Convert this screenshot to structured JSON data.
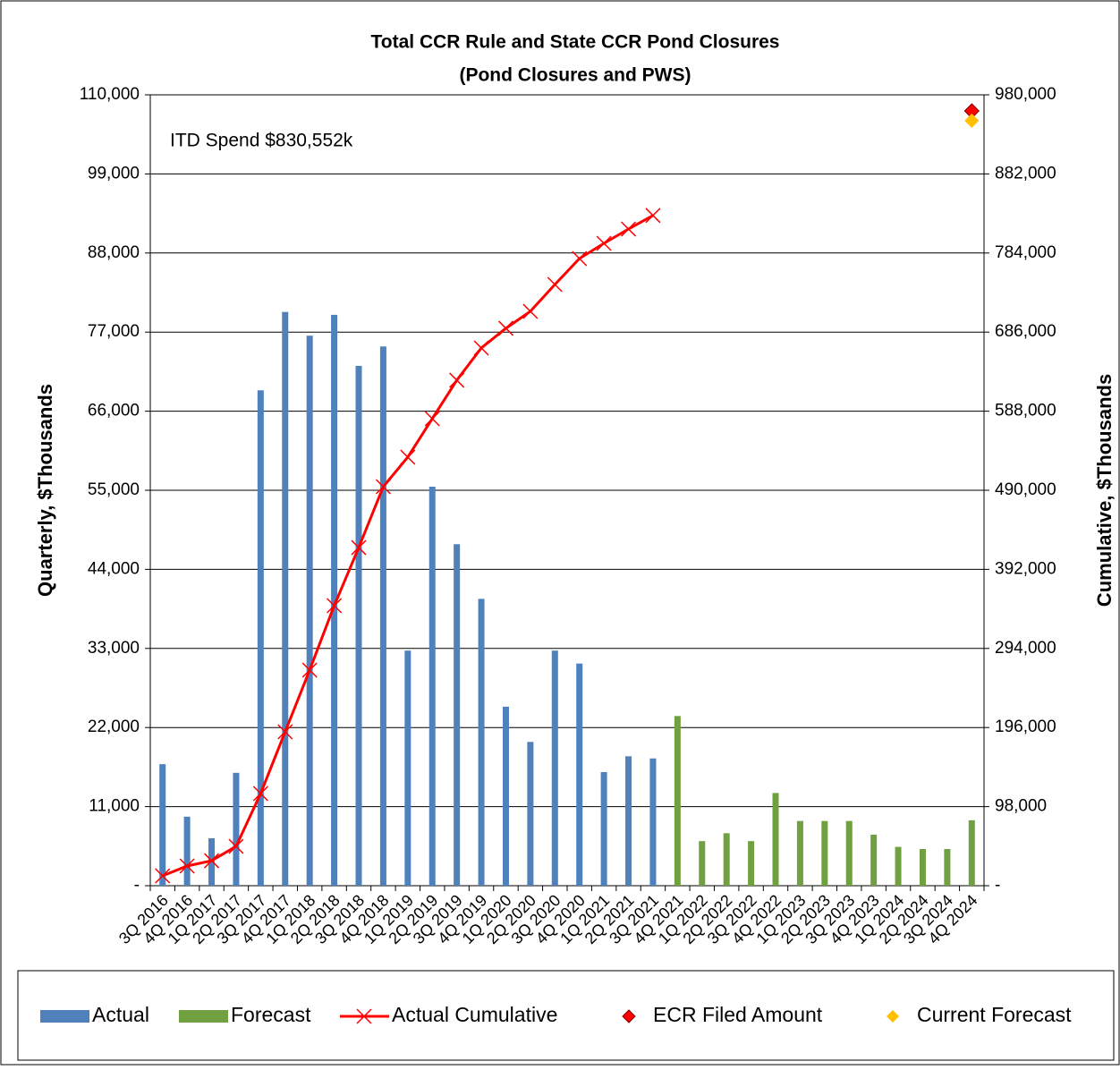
{
  "chart_data": {
    "type": "bar",
    "title": "Total CCR Rule and State CCR Pond Closures",
    "subtitle": "(Pond Closures and PWS)",
    "annotation": "ITD Spend  $830,552k",
    "y_label": "Quarterly, $Thousands",
    "y2_label": "Cumulative, $Thousands",
    "categories": [
      "3Q 2016",
      "4Q 2016",
      "1Q 2017",
      "2Q 2017",
      "3Q 2017",
      "4Q 2017",
      "1Q 2018",
      "2Q 2018",
      "3Q 2018",
      "4Q 2018",
      "1Q 2019",
      "2Q 2019",
      "3Q 2019",
      "4Q 2019",
      "1Q 2020",
      "2Q 2020",
      "3Q 2020",
      "4Q 2020",
      "1Q 2021",
      "2Q 2021",
      "3Q 2021",
      "4Q 2021",
      "1Q 2022",
      "2Q 2022",
      "3Q 2022",
      "4Q 2022",
      "1Q 2023",
      "2Q 2023",
      "3Q 2023",
      "4Q 2023",
      "1Q 2024",
      "2Q 2024",
      "3Q 2024",
      "4Q 2024"
    ],
    "series": [
      {
        "name": "Actual",
        "type": "bar",
        "color": "#4f81bd",
        "values": [
          16900,
          9600,
          6600,
          15700,
          68900,
          79800,
          76500,
          79400,
          72300,
          75000,
          32700,
          55500,
          47500,
          39900,
          24900,
          20000,
          32700,
          30900,
          15800,
          18000,
          17700,
          null,
          null,
          null,
          null,
          null,
          null,
          null,
          null,
          null,
          null,
          null,
          null,
          null
        ]
      },
      {
        "name": "Forecast",
        "type": "bar",
        "color": "#70a040",
        "values": [
          null,
          null,
          null,
          null,
          null,
          null,
          null,
          null,
          null,
          null,
          null,
          null,
          null,
          null,
          null,
          null,
          null,
          null,
          null,
          null,
          null,
          23600,
          6200,
          7300,
          6200,
          12900,
          9000,
          9000,
          9000,
          7100,
          5400,
          5100,
          5100,
          9100
        ]
      },
      {
        "name": "Actual Cumulative",
        "type": "line",
        "axis": "y2",
        "color": "#ff0000",
        "values": [
          12200,
          24400,
          31000,
          48800,
          114200,
          190700,
          267200,
          347000,
          419000,
          494400,
          531000,
          578700,
          626400,
          666300,
          690700,
          711700,
          745000,
          777100,
          796000,
          813700,
          830552,
          null,
          null,
          null,
          null,
          null,
          null,
          null,
          null,
          null,
          null,
          null,
          null,
          null
        ]
      },
      {
        "name": "ECR Filed Amount",
        "type": "scatter",
        "axis": "y2",
        "color": "#ff0000",
        "values": [
          null,
          null,
          null,
          null,
          null,
          null,
          null,
          null,
          null,
          null,
          null,
          null,
          null,
          null,
          null,
          null,
          null,
          null,
          null,
          null,
          null,
          null,
          null,
          null,
          null,
          null,
          null,
          null,
          null,
          null,
          null,
          null,
          null,
          960000
        ]
      },
      {
        "name": "Current Forecast",
        "type": "scatter",
        "axis": "y2",
        "color": "#ffc000",
        "values": [
          null,
          null,
          null,
          null,
          null,
          null,
          null,
          null,
          null,
          null,
          null,
          null,
          null,
          null,
          null,
          null,
          null,
          null,
          null,
          null,
          null,
          null,
          null,
          null,
          null,
          null,
          null,
          null,
          null,
          null,
          null,
          null,
          null,
          948000
        ]
      }
    ],
    "ylim": [
      0,
      110000
    ],
    "yticks": [
      {
        "value": 0,
        "label": "-"
      },
      {
        "value": 11000,
        "label": "11,000"
      },
      {
        "value": 22000,
        "label": "22,000"
      },
      {
        "value": 33000,
        "label": "33,000"
      },
      {
        "value": 44000,
        "label": "44,000"
      },
      {
        "value": 55000,
        "label": "55,000"
      },
      {
        "value": 66000,
        "label": "66,000"
      },
      {
        "value": 77000,
        "label": "77,000"
      },
      {
        "value": 88000,
        "label": "88,000"
      },
      {
        "value": 99000,
        "label": "99,000"
      },
      {
        "value": 110000,
        "label": "110,000"
      }
    ],
    "y2lim": [
      0,
      980000
    ],
    "y2ticks": [
      {
        "value": 0,
        "label": "-"
      },
      {
        "value": 98000,
        "label": "98,000"
      },
      {
        "value": 196000,
        "label": "196,000"
      },
      {
        "value": 294000,
        "label": "294,000"
      },
      {
        "value": 392000,
        "label": "392,000"
      },
      {
        "value": 490000,
        "label": "490,000"
      },
      {
        "value": 588000,
        "label": "588,000"
      },
      {
        "value": 686000,
        "label": "686,000"
      },
      {
        "value": 784000,
        "label": "784,000"
      },
      {
        "value": 882000,
        "label": "882,000"
      },
      {
        "value": 980000,
        "label": "980,000"
      }
    ],
    "grid": true,
    "legend": "bottom"
  }
}
